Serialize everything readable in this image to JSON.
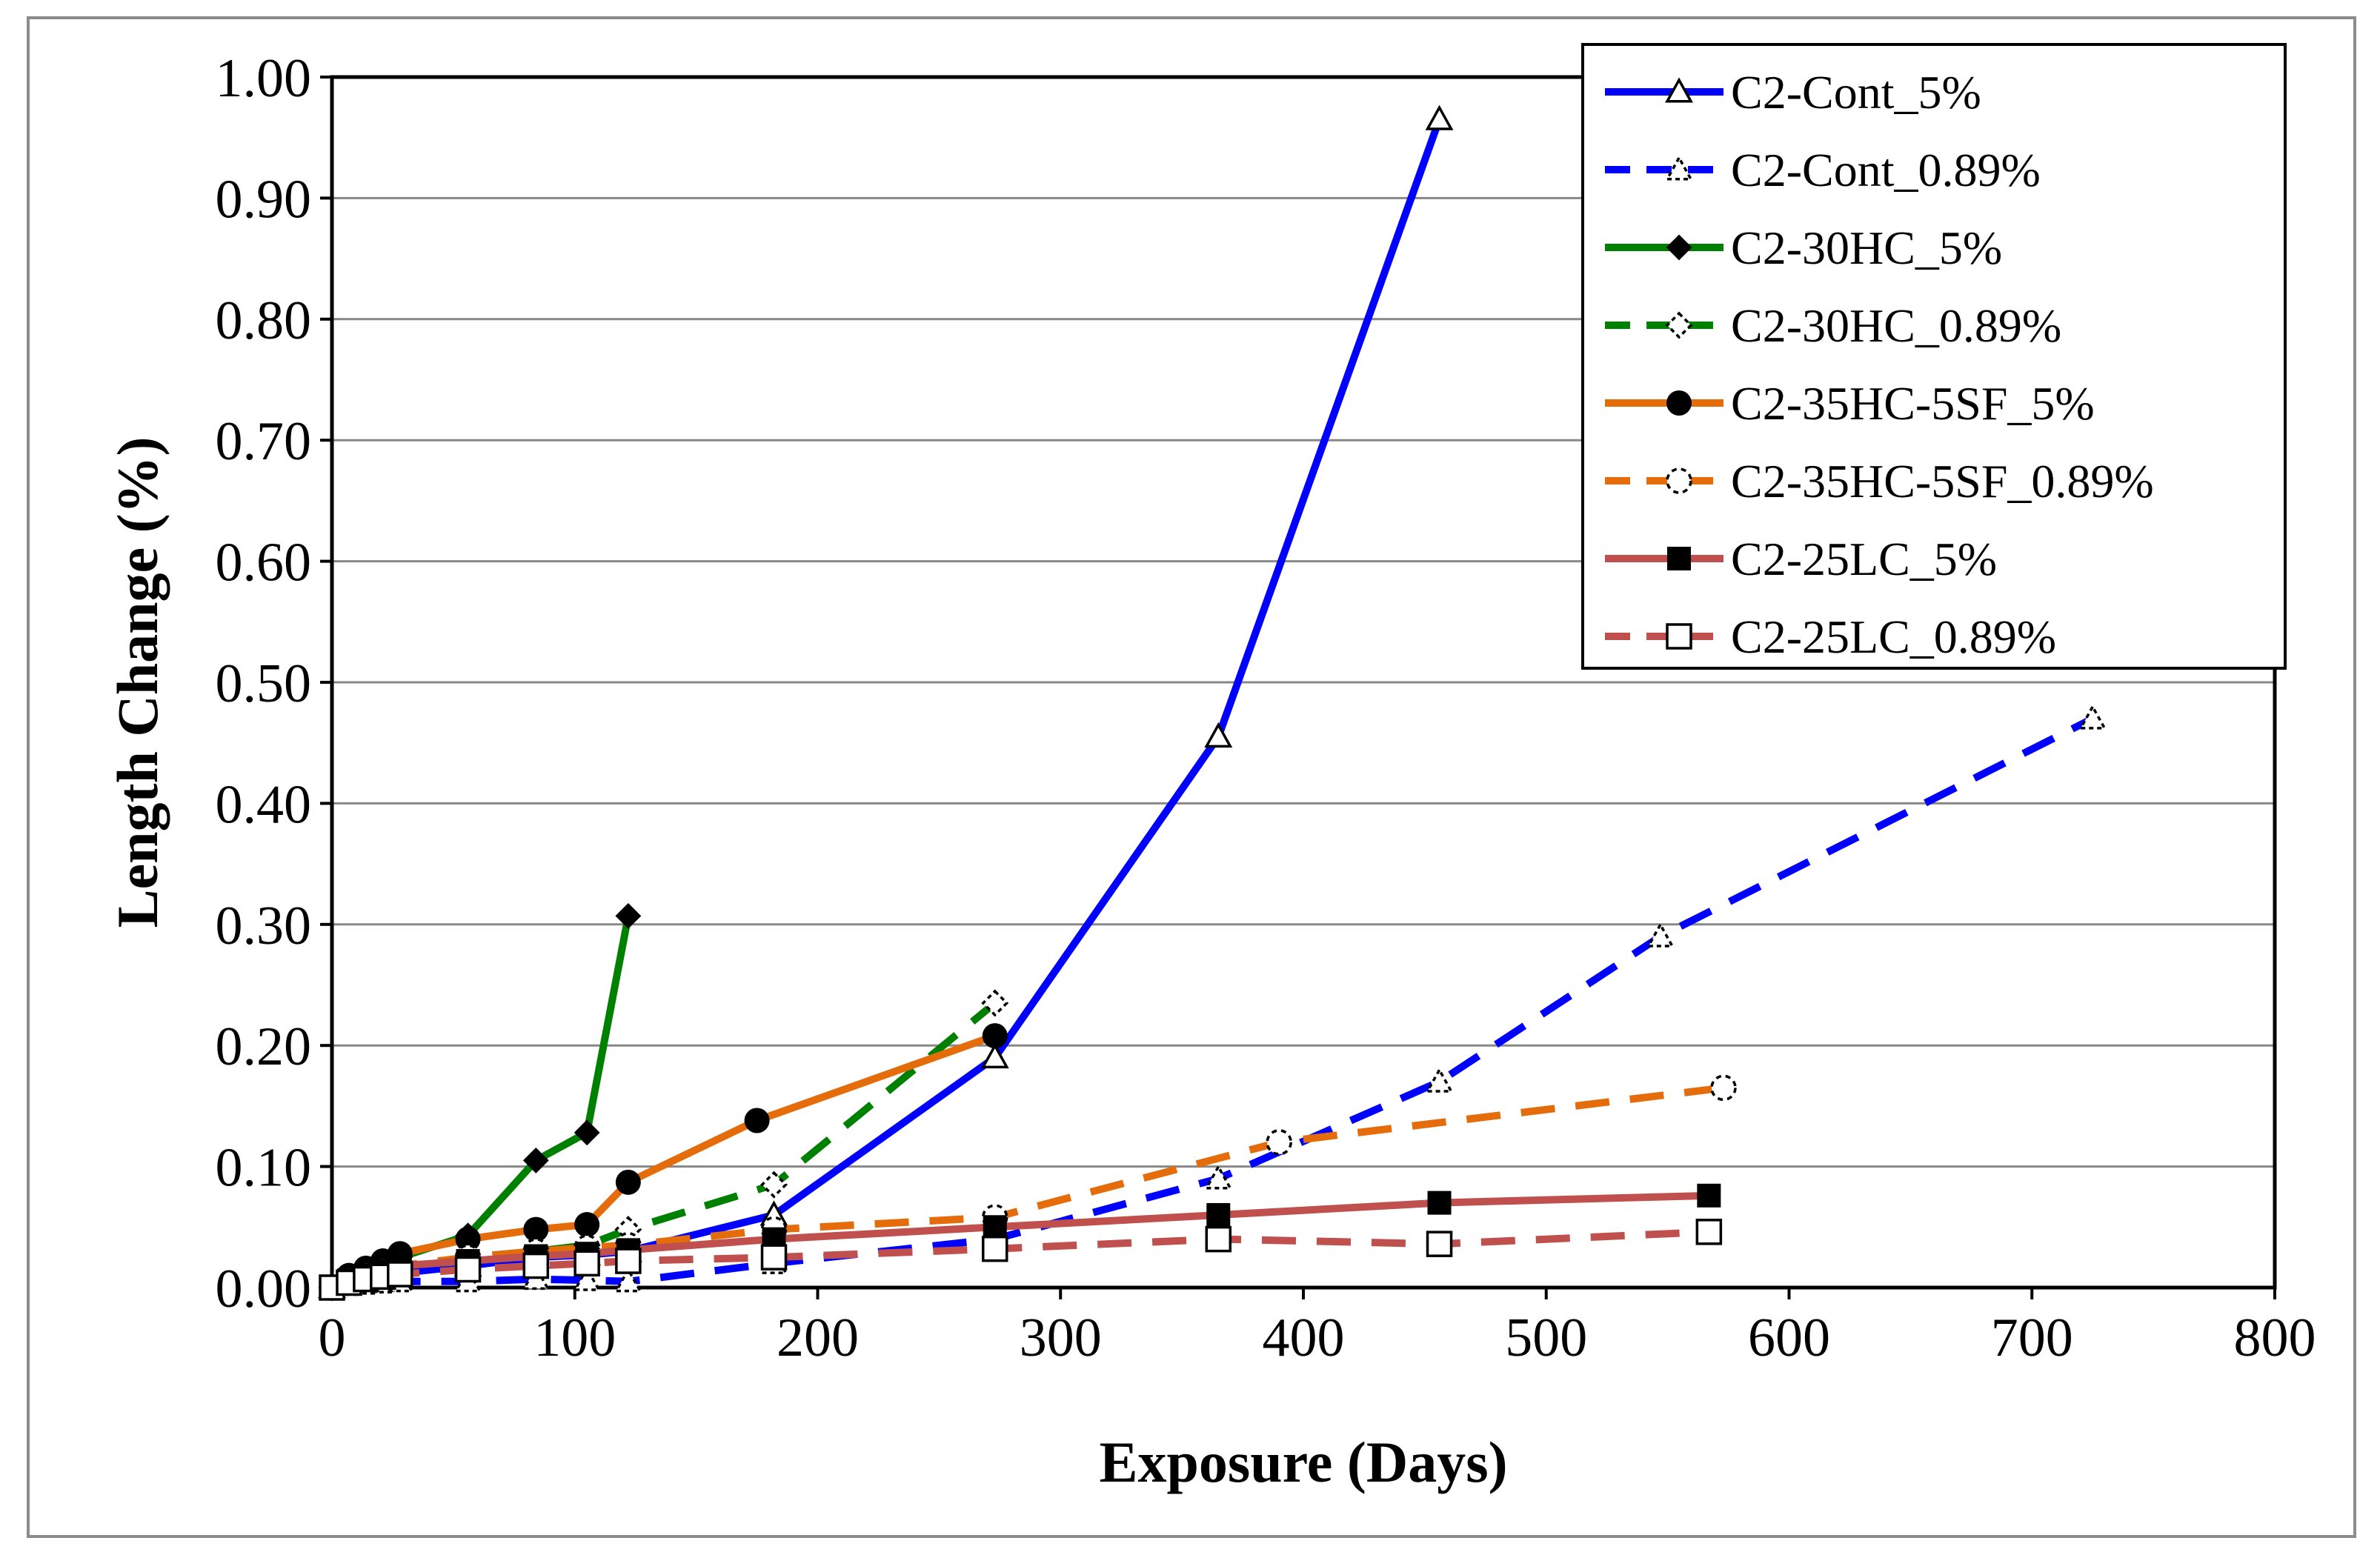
{
  "chart_data": {
    "type": "line",
    "title": "",
    "xlabel": "Exposure (Days)",
    "ylabel": "Length Change (%)",
    "xlim": [
      0,
      800
    ],
    "ylim": [
      0,
      1.0
    ],
    "xticks": [
      0,
      100,
      200,
      300,
      400,
      500,
      600,
      700,
      800
    ],
    "yticks": [
      0,
      0.1,
      0.2,
      0.3,
      0.4,
      0.5,
      0.6,
      0.7,
      0.8,
      0.9,
      1.0
    ],
    "xtick_labels": [
      "0",
      "100",
      "200",
      "300",
      "400",
      "500",
      "600",
      "700",
      "800"
    ],
    "ytick_labels": [
      "0.00",
      "0.10",
      "0.20",
      "0.30",
      "0.40",
      "0.50",
      "0.60",
      "0.70",
      "0.80",
      "0.90",
      "1.00"
    ],
    "grid": "horizontal",
    "legend_position": "top-right",
    "series": [
      {
        "name": "C2-Cont_5%",
        "color": "#0000ff",
        "dash": "solid",
        "marker": "triangle-open",
        "x": [
          0,
          7,
          14,
          21,
          28,
          56,
          84,
          105,
          122,
          182,
          273,
          365,
          456
        ],
        "y": [
          0.0,
          0.005,
          0.008,
          0.01,
          0.012,
          0.018,
          0.025,
          0.027,
          0.03,
          0.06,
          0.19,
          0.455,
          0.965
        ]
      },
      {
        "name": "C2-Cont_0.89%",
        "color": "#0000ff",
        "dash": "dashed",
        "marker": "triangle-dashed",
        "x": [
          0,
          7,
          14,
          21,
          28,
          56,
          84,
          105,
          122,
          182,
          273,
          365,
          456,
          547,
          725
        ],
        "y": [
          0.0,
          0.002,
          0.003,
          0.004,
          0.005,
          0.005,
          0.007,
          0.006,
          0.005,
          0.02,
          0.04,
          0.09,
          0.17,
          0.29,
          0.47
        ]
      },
      {
        "name": "C2-30HC_5%",
        "color": "#008000",
        "dash": "solid",
        "marker": "diamond-filled",
        "x": [
          0,
          7,
          14,
          21,
          28,
          56,
          84,
          105,
          122
        ],
        "y": [
          0.0,
          0.008,
          0.014,
          0.02,
          0.025,
          0.043,
          0.105,
          0.128,
          0.307
        ]
      },
      {
        "name": "C2-30HC_0.89%",
        "color": "#008000",
        "dash": "dashed",
        "marker": "diamond-dashed",
        "x": [
          0,
          7,
          14,
          21,
          28,
          56,
          84,
          105,
          122,
          182,
          273
        ],
        "y": [
          0.0,
          0.005,
          0.01,
          0.014,
          0.017,
          0.025,
          0.03,
          0.035,
          0.048,
          0.085,
          0.235
        ]
      },
      {
        "name": "C2-35HC-5SF_5%",
        "color": "#e46c0a",
        "dash": "solid",
        "marker": "circle-filled",
        "x": [
          0,
          7,
          14,
          21,
          28,
          56,
          84,
          105,
          122,
          175,
          273
        ],
        "y": [
          0.0,
          0.01,
          0.016,
          0.022,
          0.028,
          0.04,
          0.048,
          0.052,
          0.087,
          0.138,
          0.208
        ]
      },
      {
        "name": "C2-35HC-5SF_0.89%",
        "color": "#e46c0a",
        "dash": "dashed",
        "marker": "circle-dashed",
        "x": [
          0,
          7,
          14,
          21,
          28,
          56,
          84,
          105,
          122,
          182,
          273,
          390,
          573
        ],
        "y": [
          0.0,
          0.006,
          0.01,
          0.014,
          0.018,
          0.025,
          0.03,
          0.033,
          0.035,
          0.048,
          0.058,
          0.12,
          0.165
        ]
      },
      {
        "name": "C2-25LC_5%",
        "color": "#c0504d",
        "dash": "solid",
        "marker": "square-filled",
        "x": [
          0,
          7,
          14,
          21,
          28,
          56,
          84,
          105,
          122,
          182,
          273,
          365,
          456,
          567
        ],
        "y": [
          0.0,
          0.006,
          0.01,
          0.014,
          0.018,
          0.022,
          0.026,
          0.028,
          0.031,
          0.04,
          0.05,
          0.06,
          0.07,
          0.076
        ]
      },
      {
        "name": "C2-25LC_0.89%",
        "color": "#c0504d",
        "dash": "dashed",
        "marker": "square-open",
        "x": [
          0,
          7,
          14,
          21,
          28,
          56,
          84,
          105,
          122,
          182,
          273,
          365,
          456,
          567
        ],
        "y": [
          0.0,
          0.004,
          0.007,
          0.009,
          0.011,
          0.015,
          0.018,
          0.02,
          0.022,
          0.025,
          0.032,
          0.04,
          0.036,
          0.046
        ]
      }
    ]
  }
}
